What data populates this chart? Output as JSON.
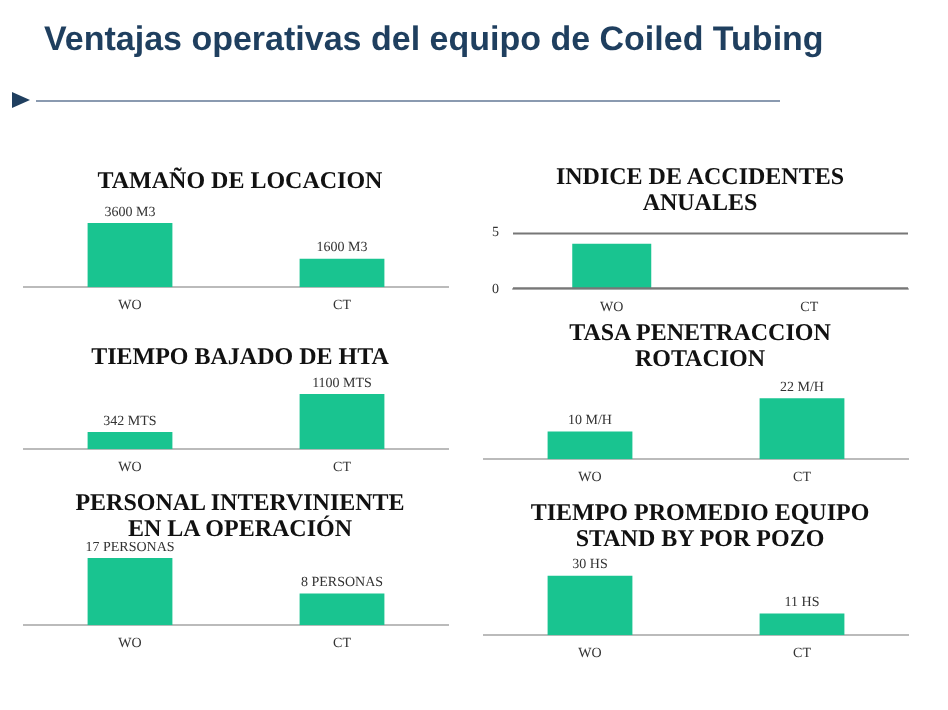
{
  "chart_data": [
    {
      "type": "bar",
      "title": "TAMAÑO DE LOCACION",
      "annotations": [
        "Ventajas operativas del equipo de Coiled Tubing"
      ],
      "categories": [
        "WO",
        "CT"
      ],
      "values": [
        3600,
        1600
      ],
      "value_labels": [
        "3600 M3",
        "1600 M3"
      ],
      "color": "#19c490",
      "grid": false,
      "tick_labels": "x"
    },
    {
      "type": "bar",
      "title": "INDICE DE ACCIDENTES ANUALES",
      "categories": [
        "WO",
        "CT"
      ],
      "values": [
        4,
        0
      ],
      "color": "#19c490",
      "ylim": [
        0,
        5
      ],
      "yticks": [
        0,
        5
      ],
      "grid": false
    },
    {
      "type": "bar",
      "title": "TIEMPO BAJADO DE HTA",
      "categories": [
        "WO",
        "CT"
      ],
      "values": [
        342,
        1100
      ],
      "value_labels": [
        "342 MTS",
        "1100 MTS"
      ],
      "color": "#19c490",
      "grid": false,
      "tick_labels": "x"
    },
    {
      "type": "bar",
      "title": "TASA PENETRACCION ROTACION",
      "categories": [
        "WO",
        "CT"
      ],
      "values": [
        10,
        22
      ],
      "value_labels": [
        "10 M/H",
        "22 M/H"
      ],
      "color": "#19c490",
      "grid": false,
      "tick_labels": "x"
    },
    {
      "type": "bar",
      "title": "PERSONAL INTERVINIENTE EN LA OPERACIÓN",
      "categories": [
        "WO",
        "CT"
      ],
      "values": [
        17,
        8
      ],
      "value_labels": [
        "17 PERSONAS",
        "8 PERSONAS"
      ],
      "color": "#19c490",
      "grid": false,
      "tick_labels": "x"
    },
    {
      "type": "bar",
      "title": "TIEMPO PROMEDIO EQUIPO STAND BY POR POZO",
      "categories": [
        "WO",
        "CT"
      ],
      "values": [
        30,
        11
      ],
      "value_labels": [
        "30 HS",
        "11 HS"
      ],
      "color": "#19c490",
      "grid": false,
      "tick_labels": "x"
    }
  ]
}
